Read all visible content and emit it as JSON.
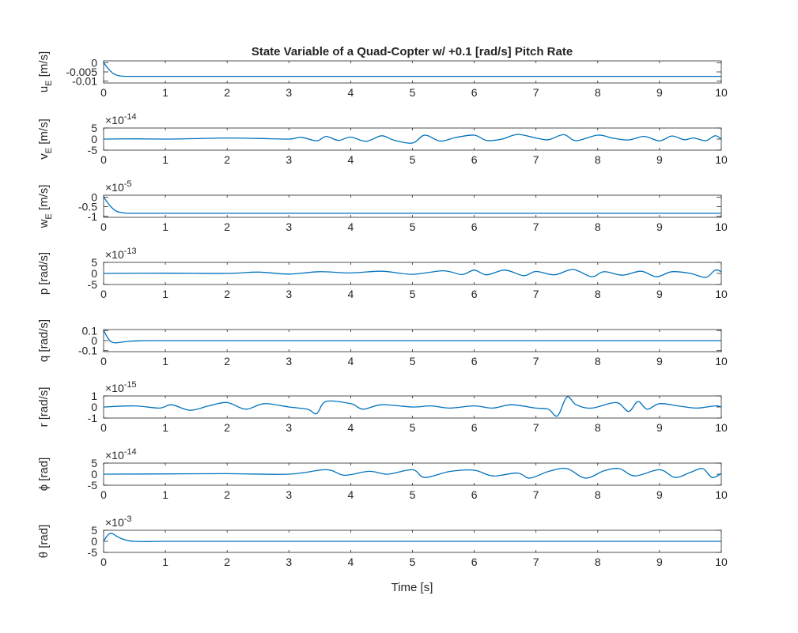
{
  "chart_data": {
    "type": "line",
    "title": "State Variable of a Quad-Copter w/ +0.1 [rad/s] Pitch Rate",
    "xlabel": "Time [s]",
    "xlim": [
      0,
      10
    ],
    "xticks": [
      0,
      1,
      2,
      3,
      4,
      5,
      6,
      7,
      8,
      9,
      10
    ],
    "line_color": "#0072BD",
    "grid": false,
    "subplots": [
      {
        "ylabel": "u_E [m/s]",
        "ylabel_main": "u",
        "ylabel_sub": "E",
        "ylabel_rest": " [m/s]",
        "exponent_label": "",
        "ylim": [
          -0.011,
          0.001
        ],
        "yticks": [
          0,
          -0.005,
          -0.01
        ],
        "ytick_labels": [
          "0",
          "-0.005",
          "-0.01"
        ],
        "x": [
          0,
          0.05,
          0.1,
          0.15,
          0.2,
          0.25,
          0.3,
          0.35,
          0.4,
          0.5,
          0.6,
          1,
          2,
          3,
          4,
          5,
          6,
          7,
          8,
          9,
          10
        ],
        "y": [
          0,
          -0.0022,
          -0.0042,
          -0.0057,
          -0.0066,
          -0.0071,
          -0.0073,
          -0.0074,
          -0.0074,
          -0.0074,
          -0.0074,
          -0.0074,
          -0.0074,
          -0.0074,
          -0.0074,
          -0.0074,
          -0.0074,
          -0.0074,
          -0.0074,
          -0.0074,
          -0.0074
        ]
      },
      {
        "ylabel": "v_E [m/s]",
        "ylabel_main": "v",
        "ylabel_sub": "E",
        "ylabel_rest": " [m/s]",
        "exponent_label": "×10-14",
        "ylim": [
          -5,
          5
        ],
        "yticks": [
          5,
          0,
          -5
        ],
        "ytick_labels": [
          "5",
          "0",
          "-5"
        ],
        "x": [
          0,
          0.5,
          1,
          1.5,
          2,
          2.5,
          3,
          3.2,
          3.45,
          3.6,
          3.8,
          4,
          4.25,
          4.5,
          4.7,
          5,
          5.2,
          5.45,
          5.7,
          6,
          6.2,
          6.45,
          6.7,
          7,
          7.2,
          7.45,
          7.65,
          8,
          8.25,
          8.5,
          8.75,
          9,
          9.2,
          9.4,
          9.55,
          9.75,
          9.9,
          10
        ],
        "y": [
          0,
          0.1,
          0,
          0.2,
          0.5,
          0.3,
          0,
          0.8,
          -0.8,
          1.2,
          -0.6,
          0.9,
          -1,
          1.5,
          -0.5,
          -1.8,
          1.8,
          -0.9,
          0.7,
          1.8,
          -0.6,
          0,
          2.1,
          0.5,
          -0.3,
          2,
          -0.7,
          1.8,
          0.4,
          -0.4,
          1.2,
          -0.8,
          1.4,
          -0.3,
          0.5,
          -0.7,
          1.5,
          0
        ]
      },
      {
        "ylabel": "w_E [m/s]",
        "ylabel_main": "w",
        "ylabel_sub": "E",
        "ylabel_rest": " [m/s]",
        "exponent_label": "×10-5",
        "ylim": [
          -1.05,
          0.1
        ],
        "yticks": [
          0,
          -0.5,
          -1
        ],
        "ytick_labels": [
          "0",
          "-0.5",
          "-1"
        ],
        "x": [
          0,
          0.05,
          0.1,
          0.15,
          0.2,
          0.25,
          0.3,
          0.35,
          0.4,
          0.5,
          1,
          2,
          3,
          4,
          5,
          6,
          7,
          8,
          9,
          10
        ],
        "y": [
          0,
          -0.22,
          -0.43,
          -0.6,
          -0.72,
          -0.78,
          -0.81,
          -0.83,
          -0.84,
          -0.84,
          -0.84,
          -0.84,
          -0.84,
          -0.84,
          -0.84,
          -0.84,
          -0.84,
          -0.84,
          -0.84,
          -0.84
        ]
      },
      {
        "ylabel": "p [rad/s]",
        "ylabel_main": "p",
        "ylabel_sub": "",
        "ylabel_rest": " [rad/s]",
        "exponent_label": "×10-13",
        "ylim": [
          -5,
          5
        ],
        "yticks": [
          5,
          0,
          -5
        ],
        "ytick_labels": [
          "5",
          "0",
          "-5"
        ],
        "x": [
          0,
          1,
          2,
          2.5,
          3,
          3.5,
          4,
          4.5,
          5,
          5.5,
          5.8,
          6,
          6.2,
          6.5,
          6.8,
          7,
          7.3,
          7.6,
          7.9,
          8.1,
          8.4,
          8.7,
          8.95,
          9.2,
          9.5,
          9.75,
          9.9,
          10
        ],
        "y": [
          0,
          0.1,
          0,
          0.6,
          -0.3,
          0.8,
          0.2,
          1,
          -0.4,
          1.2,
          -0.5,
          1.5,
          -0.6,
          1.5,
          -1,
          0.9,
          -0.6,
          1.8,
          -1.5,
          0.8,
          -0.8,
          1,
          -1.5,
          0.8,
          0,
          -1.8,
          1.5,
          0.8
        ]
      },
      {
        "ylabel": "q [rad/s]",
        "ylabel_main": "q",
        "ylabel_sub": "",
        "ylabel_rest": " [rad/s]",
        "exponent_label": "",
        "ylim": [
          -0.11,
          0.11
        ],
        "yticks": [
          0.1,
          0,
          -0.1
        ],
        "ytick_labels": [
          "0.1",
          "0",
          "-0.1"
        ],
        "x": [
          0,
          0.05,
          0.1,
          0.15,
          0.2,
          0.3,
          0.4,
          0.55,
          0.8,
          1,
          2,
          3,
          4,
          5,
          6,
          7,
          8,
          9,
          10
        ],
        "y": [
          0.1,
          0.045,
          0,
          -0.018,
          -0.022,
          -0.015,
          -0.007,
          -0.002,
          0,
          0,
          0,
          0,
          0,
          0,
          0,
          0,
          0,
          0,
          0
        ]
      },
      {
        "ylabel": "r [rad/s]",
        "ylabel_main": "r",
        "ylabel_sub": "",
        "ylabel_rest": " [rad/s]",
        "exponent_label": "×10-15",
        "ylim": [
          -1,
          1
        ],
        "yticks": [
          1,
          0,
          -1
        ],
        "ytick_labels": [
          "1",
          "0",
          "-1"
        ],
        "x": [
          0,
          0.5,
          0.9,
          1.1,
          1.4,
          1.7,
          2,
          2.3,
          2.6,
          3,
          3.3,
          3.45,
          3.6,
          4,
          4.2,
          4.5,
          5,
          5.3,
          5.6,
          6,
          6.3,
          6.6,
          7,
          7.2,
          7.35,
          7.5,
          7.65,
          7.9,
          8.3,
          8.5,
          8.65,
          8.8,
          9,
          9.3,
          9.6,
          9.9,
          10
        ],
        "y": [
          0,
          0.1,
          -0.1,
          0.2,
          -0.3,
          0.1,
          0.4,
          -0.2,
          0.3,
          0,
          -0.2,
          -0.6,
          0.5,
          0.3,
          -0.2,
          0.2,
          0,
          0.1,
          -0.1,
          0.1,
          -0.1,
          0.2,
          -0.1,
          -0.2,
          -0.8,
          0.9,
          0.2,
          -0.1,
          0.4,
          -0.4,
          0.5,
          -0.2,
          0.3,
          0.1,
          -0.1,
          0.1,
          0
        ]
      },
      {
        "ylabel": "ϕ [rad]",
        "ylabel_main": "ϕ",
        "ylabel_sub": "",
        "ylabel_rest": " [rad]",
        "exponent_label": "×10-14",
        "ylim": [
          -5,
          5
        ],
        "yticks": [
          5,
          0,
          -5
        ],
        "ytick_labels": [
          "5",
          "0",
          "-5"
        ],
        "x": [
          0,
          1,
          2,
          3,
          3.6,
          3.9,
          4.3,
          4.6,
          5,
          5.2,
          5.6,
          6,
          6.3,
          6.7,
          6.9,
          7.2,
          7.5,
          7.8,
          8.1,
          8.35,
          8.6,
          9,
          9.25,
          9.5,
          9.7,
          9.85,
          10
        ],
        "y": [
          0,
          0.1,
          0.2,
          0,
          2,
          -0.5,
          1.3,
          0,
          2,
          -1.5,
          1.2,
          1.8,
          -0.8,
          0.5,
          -1.8,
          1.2,
          2.5,
          -1.8,
          1.5,
          2.5,
          -0.8,
          2,
          -1.5,
          0.8,
          2.5,
          -1.5,
          0.3
        ]
      },
      {
        "ylabel": "θ [rad]",
        "ylabel_main": "θ",
        "ylabel_sub": "",
        "ylabel_rest": " [rad]",
        "exponent_label": "×10-3",
        "ylim": [
          -5,
          5
        ],
        "yticks": [
          5,
          0,
          -5
        ],
        "ytick_labels": [
          "5",
          "0",
          "-5"
        ],
        "x": [
          0,
          0.05,
          0.1,
          0.15,
          0.2,
          0.3,
          0.4,
          0.5,
          0.7,
          1,
          2,
          3,
          4,
          5,
          6,
          7,
          8,
          9,
          10
        ],
        "y": [
          0,
          2.2,
          3.5,
          3.4,
          2.5,
          1.1,
          0.3,
          0,
          -0.1,
          0,
          0,
          0,
          0,
          0,
          0,
          0,
          0,
          0,
          0
        ]
      }
    ]
  }
}
